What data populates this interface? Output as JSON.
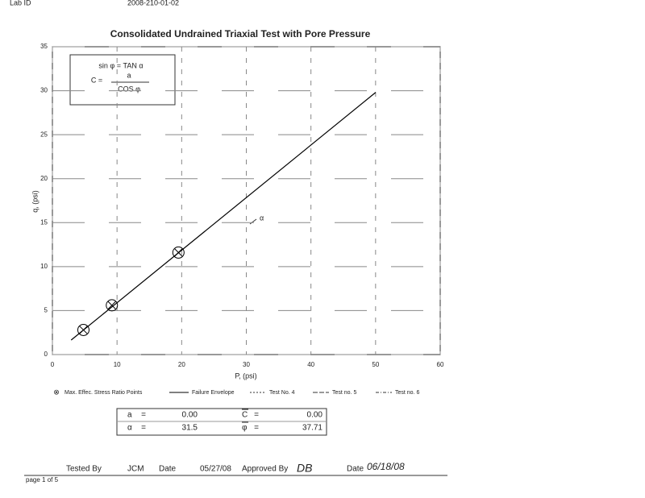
{
  "header": {
    "lab_id_label": "Lab ID",
    "lab_id": "2008-210-01-02"
  },
  "chart_data": {
    "type": "scatter",
    "title": "Consolidated Undrained Triaxial Test with Pore Pressure",
    "x_label": "P, (psi)",
    "y_label": "q, (psi)",
    "xlim": [
      0,
      60
    ],
    "xticks": [
      0,
      10,
      20,
      30,
      40,
      50,
      60
    ],
    "ylim": [
      0,
      35
    ],
    "yticks": [
      0,
      5,
      10,
      15,
      20,
      25,
      30,
      35
    ],
    "grid": true,
    "series": [
      {
        "name": "Max. Effec. Stress Ratio Points",
        "mode": "markers",
        "color": "#000000",
        "x": [
          4.8,
          9.2,
          19.5
        ],
        "values": [
          2.8,
          5.6,
          11.6
        ]
      },
      {
        "name": "Failure Envelope",
        "mode": "line",
        "color": "#000000",
        "x": [
          2.9,
          50
        ],
        "values": [
          1.65,
          29.8
        ]
      }
    ],
    "legend_extra": [
      "Test No. 4",
      "Test no. 5",
      "Test no. 6"
    ],
    "inset": [
      "sin φ = TAN α",
      "C =",
      "a",
      "COS φ"
    ],
    "annotation": "α"
  },
  "results": {
    "rows": [
      [
        "a",
        "=",
        "0.00",
        "C",
        "=",
        "0.00"
      ],
      [
        "α",
        "=",
        "31.5",
        "φ",
        "=",
        "37.71"
      ]
    ]
  },
  "footer": {
    "tested_by_label": "Tested By",
    "tested_by": "JCM",
    "date_label": "Date",
    "date": "05/27/08",
    "approved_by_label": "Approved By",
    "approved_by": "DB",
    "date2_label": "Date",
    "date2": "06/18/08",
    "page": "page 1 of 5"
  }
}
